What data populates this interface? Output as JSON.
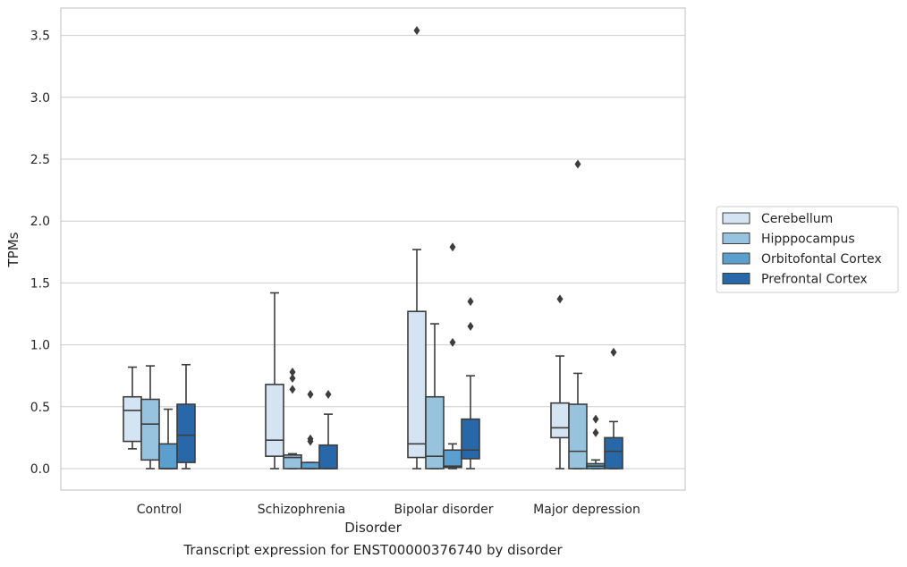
{
  "caption": "Transcript expression for ENST00000376740 by disorder",
  "chart_data": {
    "type": "boxplot",
    "xlabel": "Disorder",
    "ylabel": "TPMs",
    "categories": [
      "Control",
      "Schizophrenia",
      "Bipolar disorder",
      "Major depression"
    ],
    "yticks": [
      "0.0",
      "0.5",
      "1.0",
      "1.5",
      "2.0",
      "2.5",
      "3.0",
      "3.5"
    ],
    "ylim": [
      -0.17,
      3.72
    ],
    "grid": true,
    "legend_position": "right",
    "series": [
      {
        "name": "Cerebellum",
        "color": "#d4e4f2",
        "boxes": [
          {
            "whislo": 0.16,
            "q1": 0.22,
            "med": 0.47,
            "q3": 0.58,
            "whishi": 0.82,
            "fliers": []
          },
          {
            "whislo": 0.0,
            "q1": 0.1,
            "med": 0.23,
            "q3": 0.68,
            "whishi": 1.42,
            "fliers": []
          },
          {
            "whislo": 0.0,
            "q1": 0.09,
            "med": 0.2,
            "q3": 1.27,
            "whishi": 1.77,
            "fliers": [
              3.54
            ]
          },
          {
            "whislo": 0.0,
            "q1": 0.25,
            "med": 0.33,
            "q3": 0.53,
            "whishi": 0.91,
            "fliers": [
              1.37
            ]
          }
        ]
      },
      {
        "name": "Hipppocampus",
        "color": "#98c3de",
        "boxes": [
          {
            "whislo": 0.0,
            "q1": 0.07,
            "med": 0.36,
            "q3": 0.56,
            "whishi": 0.83,
            "fliers": []
          },
          {
            "whislo": 0.0,
            "q1": 0.0,
            "med": 0.09,
            "q3": 0.11,
            "whishi": 0.12,
            "fliers": [
              0.78,
              0.73,
              0.64
            ]
          },
          {
            "whislo": 0.0,
            "q1": 0.0,
            "med": 0.1,
            "q3": 0.58,
            "whishi": 1.17,
            "fliers": []
          },
          {
            "whislo": 0.0,
            "q1": 0.0,
            "med": 0.14,
            "q3": 0.52,
            "whishi": 0.77,
            "fliers": [
              2.46
            ]
          }
        ]
      },
      {
        "name": "Orbitofontal Cortex",
        "color": "#5a9fcd",
        "boxes": [
          {
            "whislo": 0.0,
            "q1": 0.0,
            "med": 0.0,
            "q3": 0.2,
            "whishi": 0.48,
            "fliers": []
          },
          {
            "whislo": 0.0,
            "q1": 0.0,
            "med": 0.0,
            "q3": 0.05,
            "whishi": 0.05,
            "fliers": [
              0.6,
              0.24,
              0.22
            ]
          },
          {
            "whislo": 0.0,
            "q1": 0.01,
            "med": 0.02,
            "q3": 0.15,
            "whishi": 0.2,
            "fliers": [
              1.79,
              1.02
            ]
          },
          {
            "whislo": 0.0,
            "q1": 0.0,
            "med": 0.02,
            "q3": 0.04,
            "whishi": 0.07,
            "fliers": [
              0.4,
              0.29
            ]
          }
        ]
      },
      {
        "name": "Prefrontal Cortex",
        "color": "#2867a8",
        "boxes": [
          {
            "whislo": 0.0,
            "q1": 0.05,
            "med": 0.27,
            "q3": 0.52,
            "whishi": 0.84,
            "fliers": []
          },
          {
            "whislo": 0.0,
            "q1": 0.0,
            "med": 0.0,
            "q3": 0.19,
            "whishi": 0.44,
            "fliers": [
              0.6
            ]
          },
          {
            "whislo": 0.0,
            "q1": 0.08,
            "med": 0.15,
            "q3": 0.4,
            "whishi": 0.75,
            "fliers": [
              1.35,
              1.15
            ]
          },
          {
            "whislo": 0.0,
            "q1": 0.0,
            "med": 0.14,
            "q3": 0.25,
            "whishi": 0.38,
            "fliers": [
              0.94
            ]
          }
        ]
      }
    ]
  }
}
